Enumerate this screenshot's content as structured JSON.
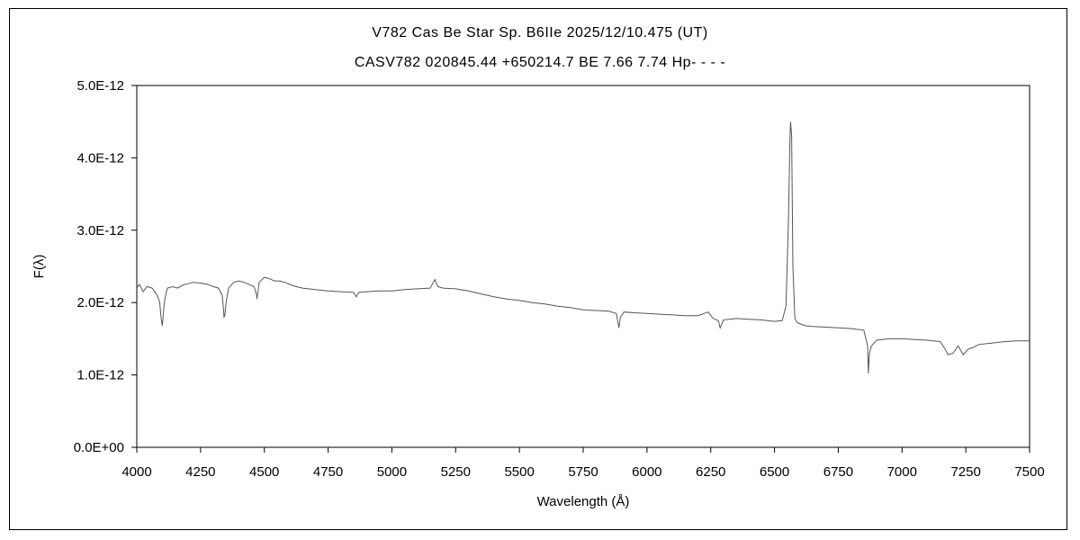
{
  "chart_data": {
    "type": "line",
    "title": "V782 Cas    Be Star    Sp. B6IIe    2025/12/10.475 (UT)",
    "subtitle": "CASV782 020845.44 +650214.7 BE 7.66 7.74 Hp- - - -",
    "xlabel": "Wavelength (Å)",
    "ylabel": "F(λ)",
    "xlim": [
      4000,
      7500
    ],
    "ylim": [
      0,
      5e-12
    ],
    "x_ticks": [
      "4000",
      "4250",
      "4500",
      "4750",
      "5000",
      "5250",
      "5500",
      "5750",
      "6000",
      "6250",
      "6500",
      "6750",
      "7000",
      "7250",
      "7500"
    ],
    "y_ticks": [
      "0.0E+00",
      "1.0E-12",
      "2.0E-12",
      "3.0E-12",
      "4.0E-12",
      "5.0E-12"
    ],
    "grid": false,
    "legend": "none",
    "line_color": "#555555",
    "series": [
      {
        "x": [
          4000,
          4010,
          4025,
          4040,
          4060,
          4080,
          4090,
          4095,
          4100,
          4102,
          4105,
          4110,
          4120,
          4140,
          4160,
          4180,
          4200,
          4220,
          4250,
          4280,
          4300,
          4320,
          4335,
          4340,
          4342,
          4345,
          4350,
          4360,
          4380,
          4400,
          4420,
          4440,
          4460,
          4470,
          4471,
          4475,
          4480,
          4500,
          4520,
          4540,
          4560,
          4580,
          4600,
          4625,
          4650,
          4700,
          4750,
          4800,
          4850,
          4861,
          4870,
          4900,
          4950,
          5000,
          5050,
          5100,
          5150,
          5169,
          5180,
          5200,
          5250,
          5300,
          5350,
          5400,
          5450,
          5500,
          5550,
          5600,
          5650,
          5700,
          5750,
          5800,
          5850,
          5880,
          5890,
          5896,
          5910,
          5950,
          6000,
          6050,
          6100,
          6150,
          6200,
          6240,
          6260,
          6280,
          6287,
          6300,
          6350,
          6400,
          6450,
          6500,
          6530,
          6545,
          6555,
          6560,
          6563,
          6567,
          6572,
          6580,
          6590,
          6620,
          6650,
          6700,
          6750,
          6800,
          6850,
          6865,
          6868,
          6872,
          6880,
          6900,
          6950,
          7000,
          7050,
          7100,
          7150,
          7170,
          7180,
          7200,
          7220,
          7240,
          7260,
          7280,
          7300,
          7350,
          7400,
          7450,
          7500
        ],
        "y": [
          2.2e-12,
          2.25e-12,
          2.15e-12,
          2.22e-12,
          2.2e-12,
          2.1e-12,
          2e-12,
          1.8e-12,
          1.68e-12,
          1.75e-12,
          1.9e-12,
          2.05e-12,
          2.2e-12,
          2.22e-12,
          2.2e-12,
          2.24e-12,
          2.26e-12,
          2.28e-12,
          2.27e-12,
          2.25e-12,
          2.22e-12,
          2.2e-12,
          2.1e-12,
          1.9e-12,
          1.8e-12,
          1.82e-12,
          2e-12,
          2.2e-12,
          2.28e-12,
          2.3e-12,
          2.28e-12,
          2.25e-12,
          2.22e-12,
          2.1e-12,
          2.05e-12,
          2.15e-12,
          2.28e-12,
          2.35e-12,
          2.33e-12,
          2.3e-12,
          2.3e-12,
          2.28e-12,
          2.25e-12,
          2.22e-12,
          2.2e-12,
          2.18e-12,
          2.16e-12,
          2.15e-12,
          2.14e-12,
          2.08e-12,
          2.14e-12,
          2.15e-12,
          2.16e-12,
          2.16e-12,
          2.18e-12,
          2.19e-12,
          2.2e-12,
          2.32e-12,
          2.22e-12,
          2.2e-12,
          2.19e-12,
          2.16e-12,
          2.12e-12,
          2.08e-12,
          2.05e-12,
          2.03e-12,
          2e-12,
          1.98e-12,
          1.95e-12,
          1.93e-12,
          1.9e-12,
          1.89e-12,
          1.88e-12,
          1.85e-12,
          1.65e-12,
          1.8e-12,
          1.87e-12,
          1.86e-12,
          1.85e-12,
          1.84e-12,
          1.83e-12,
          1.82e-12,
          1.82e-12,
          1.87e-12,
          1.78e-12,
          1.75e-12,
          1.65e-12,
          1.76e-12,
          1.78e-12,
          1.77e-12,
          1.76e-12,
          1.74e-12,
          1.75e-12,
          1.95e-12,
          3.2e-12,
          4.2e-12,
          4.5e-12,
          4.3e-12,
          2.5e-12,
          1.78e-12,
          1.72e-12,
          1.68e-12,
          1.67e-12,
          1.66e-12,
          1.65e-12,
          1.64e-12,
          1.62e-12,
          1.4e-12,
          1.02e-12,
          1.3e-12,
          1.4e-12,
          1.48e-12,
          1.5e-12,
          1.5e-12,
          1.49e-12,
          1.48e-12,
          1.46e-12,
          1.35e-12,
          1.28e-12,
          1.3e-12,
          1.4e-12,
          1.28e-12,
          1.36e-12,
          1.38e-12,
          1.42e-12,
          1.44e-12,
          1.46e-12,
          1.47e-12,
          1.47e-12
        ]
      }
    ]
  }
}
